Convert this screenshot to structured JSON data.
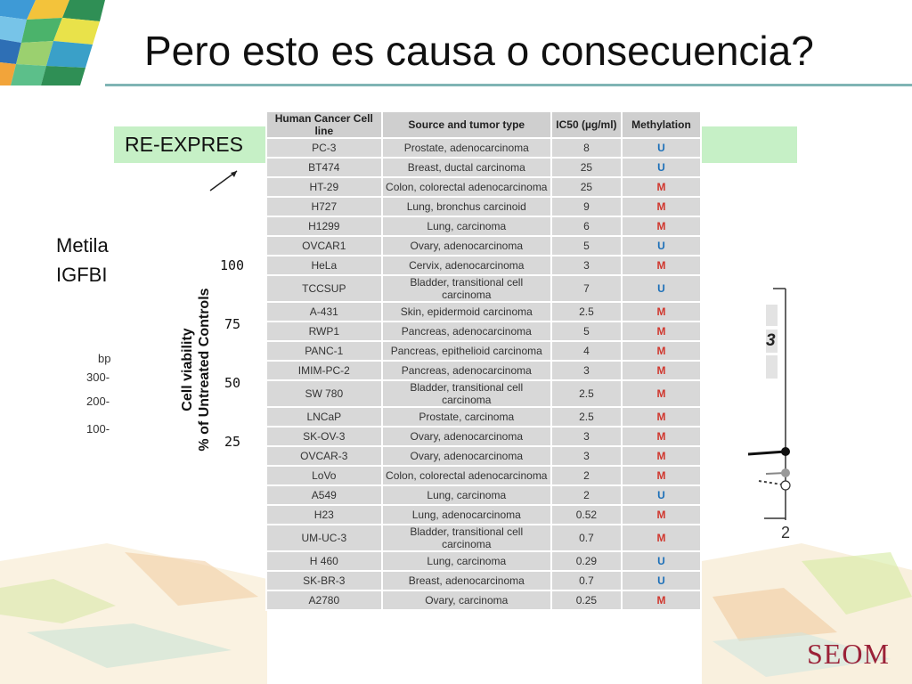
{
  "slide": {
    "title": "Pero esto es causa o consecuencia?",
    "banner_text": "RE-EXPRES",
    "side_text_line1": "Metila",
    "side_text_line2": "IGFBI",
    "logo_text": "SEOM"
  },
  "chart": {
    "ylabel_line1": "Cell viability",
    "ylabel_line2": "% of Untreated Controls",
    "ticks": [
      "100",
      "75",
      "50",
      "25"
    ],
    "right_axis_tick": "2",
    "right_box_label": "3"
  },
  "gel": {
    "header": "bp",
    "markers": [
      "300",
      "200",
      "100"
    ]
  },
  "table": {
    "headers": [
      "Human Cancer Cell line",
      "Source and tumor type",
      "IC50 (µg/ml)",
      "Methylation"
    ],
    "rows": [
      [
        "PC-3",
        "Prostate, adenocarcinoma",
        "8",
        "U"
      ],
      [
        "BT474",
        "Breast, ductal carcinoma",
        "25",
        "U"
      ],
      [
        "HT-29",
        "Colon, colorectal adenocarcinoma",
        "25",
        "M"
      ],
      [
        "H727",
        "Lung, bronchus carcinoid",
        "9",
        "M"
      ],
      [
        "H1299",
        "Lung, carcinoma",
        "6",
        "M"
      ],
      [
        "OVCAR1",
        "Ovary, adenocarcinoma",
        "5",
        "U"
      ],
      [
        "HeLa",
        "Cervix, adenocarcinoma",
        "3",
        "M"
      ],
      [
        "TCCSUP",
        "Bladder, transitional cell carcinoma",
        "7",
        "U"
      ],
      [
        "A-431",
        "Skin, epidermoid carcinoma",
        "2.5",
        "M"
      ],
      [
        "RWP1",
        "Pancreas, adenocarcinoma",
        "5",
        "M"
      ],
      [
        "PANC-1",
        "Pancreas, epithelioid carcinoma",
        "4",
        "M"
      ],
      [
        "IMIM-PC-2",
        "Pancreas, adenocarcinoma",
        "3",
        "M"
      ],
      [
        "SW 780",
        "Bladder, transitional cell carcinoma",
        "2.5",
        "M"
      ],
      [
        "LNCaP",
        "Prostate, carcinoma",
        "2.5",
        "M"
      ],
      [
        "SK-OV-3",
        "Ovary, adenocarcinoma",
        "3",
        "M"
      ],
      [
        "OVCAR-3",
        "Ovary, adenocarcinoma",
        "3",
        "M"
      ],
      [
        "LoVo",
        "Colon, colorectal adenocarcinoma",
        "2",
        "M"
      ],
      [
        "A549",
        "Lung, carcinoma",
        "2",
        "U"
      ],
      [
        "H23",
        "Lung, adenocarcinoma",
        "0.52",
        "M"
      ],
      [
        "UM-UC-3",
        "Bladder, transitional cell carcinoma",
        "0.7",
        "M"
      ],
      [
        "H 460",
        "Lung, carcinoma",
        "0.29",
        "U"
      ],
      [
        "SK-BR-3",
        "Breast, adenocarcinoma",
        "0.7",
        "U"
      ],
      [
        "A2780",
        "Ovary, carcinoma",
        "0.25",
        "M"
      ]
    ]
  },
  "colors": {
    "title_rule": "#7fb4b4",
    "banner": "#c6f0c6",
    "methylated": "#d0372e",
    "unmethylated": "#1c6fb8",
    "logo": "#9b2238"
  }
}
